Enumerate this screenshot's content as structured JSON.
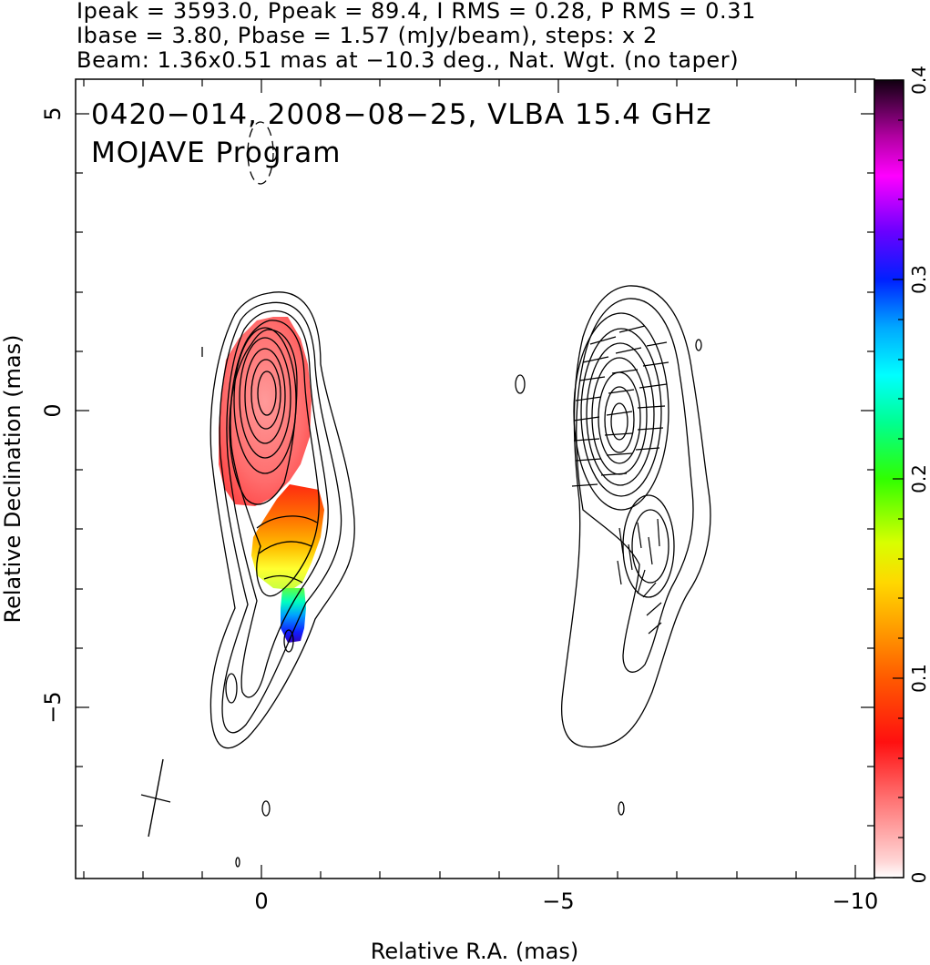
{
  "header": {
    "line1": "Ipeak = 3593.0, Ppeak = 89.4, I RMS = 0.28, P RMS = 0.31",
    "line2": "Ibase = 3.80, Pbase = 1.57 (mJy/beam), steps: x 2",
    "line3": "Beam: 1.36x0.51 mas at −10.3 deg., Nat. Wgt. (no taper)"
  },
  "title": {
    "line1": "0420−014, 2008−08−25, VLBA 15.4 GHz",
    "line2": "MOJAVE Program"
  },
  "chart_data": {
    "type": "heatmap",
    "description_note": "",
    "xlabel": "Relative R.A. (mas)",
    "ylabel": "Relative Declination (mas)",
    "x_ticks": [
      0,
      -5,
      -10
    ],
    "x_tick_labels": [
      "0",
      "−5",
      "−10"
    ],
    "y_ticks": [
      5,
      0,
      -5
    ],
    "y_tick_labels": [
      "5",
      "0",
      "−5"
    ],
    "xlim": [
      3.0,
      -10.4
    ],
    "ylim": [
      -7.9,
      5.6
    ],
    "colorbar": {
      "ticks": [
        0,
        0.1,
        0.2,
        0.3,
        0.4
      ],
      "tick_labels": [
        "0",
        "0.1",
        "0.2",
        "0.3",
        "0.4"
      ],
      "range": [
        0,
        0.4
      ]
    },
    "panels": [
      {
        "name": "left",
        "center_ra": 0.0
      },
      {
        "name": "right",
        "center_ra": -6.0
      }
    ],
    "beam": {
      "major_mas": 1.36,
      "minor_mas": 0.51,
      "pa_deg": -10.3
    },
    "contour_levels_mjy_beam": [
      3.8,
      7.6,
      15.2,
      30.4,
      60.8,
      121.6,
      243.2,
      486.4,
      972.8,
      1945.6
    ],
    "fractional_polarization_regions": [
      {
        "ra": 0.1,
        "dec": 0.2,
        "value": 0.03
      },
      {
        "ra": -0.4,
        "dec": -1.8,
        "value": 0.08
      },
      {
        "ra": -0.3,
        "dec": -2.4,
        "value": 0.11
      },
      {
        "ra": -0.4,
        "dec": -2.8,
        "value": 0.14
      },
      {
        "ra": -0.55,
        "dec": -3.2,
        "value": 0.2
      },
      {
        "ra": -0.55,
        "dec": -3.55,
        "value": 0.29
      }
    ]
  },
  "colors": {
    "axis": "#000000",
    "contour": "#000000",
    "background": "#ffffff"
  }
}
